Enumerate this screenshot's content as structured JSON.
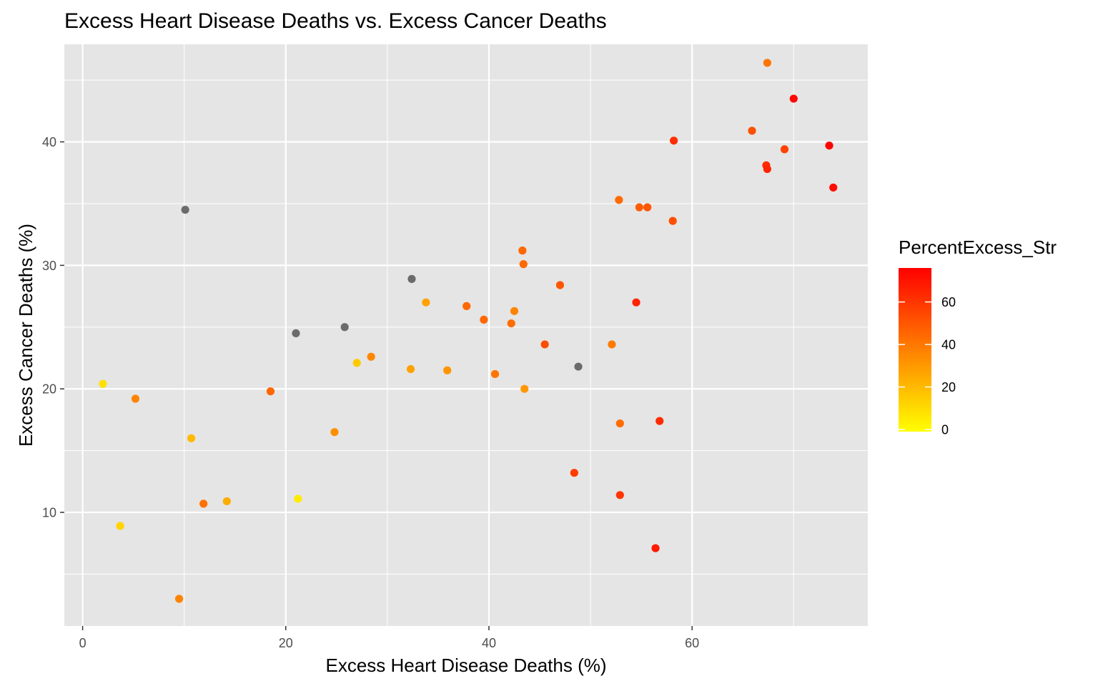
{
  "chart_data": {
    "type": "scatter",
    "title": "Excess Heart Disease Deaths vs. Excess Cancer Deaths",
    "xlabel": "Excess Heart Disease Deaths (%)",
    "ylabel": "Excess Cancer Deaths (%)",
    "xlim": [
      -1.8,
      77.3
    ],
    "ylim": [
      0.8,
      47.9
    ],
    "x_ticks": [
      0,
      20,
      40,
      60
    ],
    "x_tick_labels": [
      "0",
      "20",
      "40",
      "60"
    ],
    "y_ticks": [
      10,
      20,
      30,
      40
    ],
    "y_tick_labels": [
      "10",
      "20",
      "30",
      "40"
    ],
    "grid": true,
    "panel_background": "#e5e5e5",
    "grid_color": "#ffffff",
    "na_color": "#6b6b6b",
    "legend": {
      "title": "PercentExcess_Str",
      "placement": "right",
      "type": "colorbar",
      "low_color": "#ffff00",
      "high_color": "#ff0000",
      "limits": [
        -1,
        76
      ],
      "ticks": [
        0,
        20,
        40,
        60
      ],
      "tick_labels": [
        "0",
        "20",
        "40",
        "60"
      ]
    },
    "points": [
      {
        "x": 67.4,
        "y": 46.4,
        "c": 41
      },
      {
        "x": 70.0,
        "y": 43.5,
        "c": 74
      },
      {
        "x": 65.9,
        "y": 40.9,
        "c": 52
      },
      {
        "x": 58.2,
        "y": 40.1,
        "c": 62
      },
      {
        "x": 73.5,
        "y": 39.7,
        "c": 75
      },
      {
        "x": 69.1,
        "y": 39.4,
        "c": 56
      },
      {
        "x": 67.3,
        "y": 38.1,
        "c": 63
      },
      {
        "x": 67.4,
        "y": 37.8,
        "c": 65
      },
      {
        "x": 73.9,
        "y": 36.3,
        "c": 72
      },
      {
        "x": 52.8,
        "y": 35.3,
        "c": 44
      },
      {
        "x": 54.8,
        "y": 34.7,
        "c": 48
      },
      {
        "x": 55.6,
        "y": 34.7,
        "c": 50
      },
      {
        "x": 58.1,
        "y": 33.6,
        "c": 52
      },
      {
        "x": 10.1,
        "y": 34.5,
        "c": null
      },
      {
        "x": 43.3,
        "y": 31.2,
        "c": 45
      },
      {
        "x": 43.4,
        "y": 30.1,
        "c": 44
      },
      {
        "x": 32.4,
        "y": 28.9,
        "c": null
      },
      {
        "x": 47.0,
        "y": 28.4,
        "c": 50
      },
      {
        "x": 33.8,
        "y": 27.0,
        "c": 27
      },
      {
        "x": 54.5,
        "y": 27.0,
        "c": 65
      },
      {
        "x": 37.8,
        "y": 26.7,
        "c": 45
      },
      {
        "x": 42.5,
        "y": 26.3,
        "c": 36
      },
      {
        "x": 39.5,
        "y": 25.6,
        "c": 45
      },
      {
        "x": 42.2,
        "y": 25.3,
        "c": 43
      },
      {
        "x": 25.8,
        "y": 25.0,
        "c": null
      },
      {
        "x": 21.0,
        "y": 24.5,
        "c": null
      },
      {
        "x": 45.5,
        "y": 23.6,
        "c": 52
      },
      {
        "x": 52.1,
        "y": 23.6,
        "c": 39
      },
      {
        "x": 28.4,
        "y": 22.6,
        "c": 35
      },
      {
        "x": 27.0,
        "y": 22.1,
        "c": 15
      },
      {
        "x": 48.8,
        "y": 21.8,
        "c": null
      },
      {
        "x": 32.3,
        "y": 21.6,
        "c": 27
      },
      {
        "x": 35.9,
        "y": 21.5,
        "c": 31
      },
      {
        "x": 40.6,
        "y": 21.2,
        "c": 41
      },
      {
        "x": 2.0,
        "y": 20.4,
        "c": 8
      },
      {
        "x": 43.5,
        "y": 20.0,
        "c": 30
      },
      {
        "x": 18.5,
        "y": 19.8,
        "c": 45
      },
      {
        "x": 5.2,
        "y": 19.2,
        "c": 36
      },
      {
        "x": 56.8,
        "y": 17.4,
        "c": 63
      },
      {
        "x": 52.9,
        "y": 17.2,
        "c": 43
      },
      {
        "x": 24.8,
        "y": 16.5,
        "c": 33
      },
      {
        "x": 10.7,
        "y": 16.0,
        "c": 20
      },
      {
        "x": 48.4,
        "y": 13.2,
        "c": 58
      },
      {
        "x": 52.9,
        "y": 11.4,
        "c": 60
      },
      {
        "x": 21.2,
        "y": 11.1,
        "c": 5
      },
      {
        "x": 14.2,
        "y": 10.9,
        "c": 24
      },
      {
        "x": 11.9,
        "y": 10.7,
        "c": 42
      },
      {
        "x": 3.7,
        "y": 8.9,
        "c": 12
      },
      {
        "x": 56.4,
        "y": 7.1,
        "c": 68
      },
      {
        "x": 9.5,
        "y": 3.0,
        "c": 36
      }
    ]
  }
}
